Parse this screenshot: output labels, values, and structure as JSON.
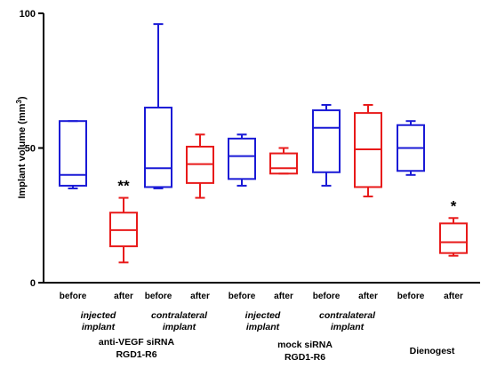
{
  "chart_data": {
    "type": "box",
    "ylabel": "Implant volume (mm",
    "ylabel_sup": "3",
    "ylabel_close": ")",
    "ylim": [
      0,
      100
    ],
    "yticks": [
      "0",
      "50",
      "100"
    ],
    "grid": false,
    "colors": {
      "before": "#1a1ad6",
      "after": "#e81a1a"
    },
    "boxes": [
      {
        "label": "before",
        "stage": "before",
        "min": 35,
        "q1": 36,
        "median": 40,
        "q3": 60,
        "max": 60
      },
      {
        "label": "after",
        "stage": "after",
        "min": 7.5,
        "q1": 13.5,
        "median": 19.5,
        "q3": 26,
        "max": 31.5,
        "annotation": "**"
      },
      {
        "label": "before",
        "stage": "before",
        "min": 35,
        "q1": 35.5,
        "median": 42.5,
        "q3": 65,
        "max": 96
      },
      {
        "label": "after",
        "stage": "after",
        "min": 31.5,
        "q1": 37,
        "median": 44,
        "q3": 50.5,
        "max": 55
      },
      {
        "label": "before",
        "stage": "before",
        "min": 36,
        "q1": 38.5,
        "median": 47,
        "q3": 53.5,
        "max": 55
      },
      {
        "label": "after",
        "stage": "after",
        "min": 40.5,
        "q1": 40.5,
        "median": 42.5,
        "q3": 48,
        "max": 50
      },
      {
        "label": "before",
        "stage": "before",
        "min": 36,
        "q1": 41,
        "median": 57.5,
        "q3": 64,
        "max": 66
      },
      {
        "label": "after",
        "stage": "after",
        "min": 32,
        "q1": 35.5,
        "median": 49.5,
        "q3": 63,
        "max": 66
      },
      {
        "label": "before",
        "stage": "before",
        "min": 40,
        "q1": 41.5,
        "median": 50,
        "q3": 58.5,
        "max": 60
      },
      {
        "label": "after",
        "stage": "after",
        "min": 10,
        "q1": 11,
        "median": 15,
        "q3": 22,
        "max": 24,
        "annotation": "*"
      }
    ],
    "subgroups": [
      {
        "line1": "injected",
        "line2": "implant",
        "boxes": [
          0,
          1
        ]
      },
      {
        "line1": "contralateral",
        "line2": "implant",
        "boxes": [
          2,
          3
        ]
      },
      {
        "line1": "injected",
        "line2": "implant",
        "boxes": [
          4,
          5
        ]
      },
      {
        "line1": "contralateral",
        "line2": "implant",
        "boxes": [
          6,
          7
        ]
      }
    ],
    "groups": [
      {
        "line1": "anti-VEGF siRNA",
        "line2": "RGD1-R6",
        "boxes": [
          0,
          3
        ]
      },
      {
        "line1": "mock siRNA",
        "line2": "RGD1-R6",
        "boxes": [
          4,
          7
        ]
      },
      {
        "line1": "Dienogest",
        "line2": "",
        "boxes": [
          8,
          9
        ]
      }
    ]
  }
}
